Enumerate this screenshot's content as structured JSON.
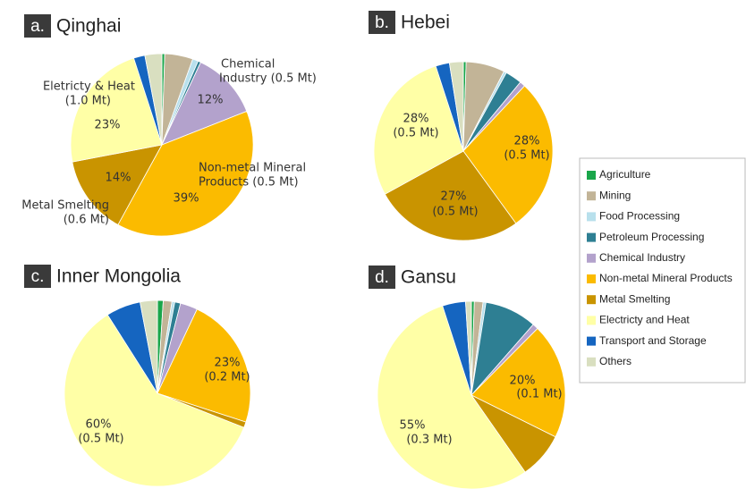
{
  "legend": {
    "categories": [
      "Agriculture",
      "Mining",
      "Food Processing",
      "Petroleum Processing",
      "Chemical Industry",
      "Non-metal Mineral Products",
      "Metal Smelting",
      "Electricty and Heat",
      "Transport and Storage",
      "Others"
    ],
    "colors": [
      "#1aa64a",
      "#c2b497",
      "#b8e0ec",
      "#2e7f93",
      "#b3a2cc",
      "#fbbb00",
      "#c99400",
      "#ffffa6",
      "#1565c0",
      "#d9dfc0"
    ]
  },
  "chart_data": [
    {
      "type": "pie",
      "panel": "a.",
      "title": "Qinghai",
      "values": [
        0.5,
        5,
        1,
        0.5,
        12,
        39,
        14,
        23,
        2,
        3
      ],
      "value_labels": [
        null,
        null,
        null,
        null,
        "12%",
        "39%",
        "14%",
        "23%",
        null,
        null
      ],
      "notes": [
        null,
        null,
        null,
        null,
        [
          "Chemical",
          "Industry (0.5 Mt)"
        ],
        [
          "Non-metal Mineral",
          "Products (0.5 Mt)"
        ],
        [
          "Metal Smelting",
          "(0.6 Mt)"
        ],
        [
          "Eletricty & Heat",
          "(1.0 Mt)"
        ],
        null,
        null
      ]
    },
    {
      "type": "pie",
      "panel": "b.",
      "title": "Hebei",
      "values": [
        0.5,
        7,
        0.5,
        3,
        1,
        28,
        27,
        28,
        2.5,
        2.5
      ],
      "value_labels": [
        null,
        null,
        null,
        null,
        null,
        "28%",
        "27%",
        "28%",
        null,
        null
      ],
      "notes": [
        null,
        null,
        null,
        null,
        null,
        [
          "(0.5 Mt)"
        ],
        [
          "(0.5 Mt)"
        ],
        [
          "(0.5 Mt)"
        ],
        null,
        null
      ]
    },
    {
      "type": "pie",
      "panel": "c.",
      "title": "Inner Mongolia",
      "values": [
        1,
        1.5,
        0.5,
        1,
        3,
        23,
        1,
        60,
        6,
        3
      ],
      "value_labels": [
        null,
        null,
        null,
        null,
        null,
        "23%",
        null,
        "60%",
        null,
        null
      ],
      "notes": [
        null,
        null,
        null,
        null,
        null,
        [
          "(0.2 Mt)"
        ],
        null,
        [
          "(0.5 Mt)"
        ],
        null,
        null
      ]
    },
    {
      "type": "pie",
      "panel": "d.",
      "title": "Gansu",
      "values": [
        0.5,
        1.5,
        0.5,
        9,
        1,
        20,
        8,
        55,
        4,
        1
      ],
      "value_labels": [
        null,
        null,
        null,
        null,
        null,
        "20%",
        null,
        "55%",
        null,
        null
      ],
      "notes": [
        null,
        null,
        null,
        null,
        null,
        [
          "(0.1 Mt)"
        ],
        null,
        [
          "(0.3 Mt)"
        ],
        null,
        null
      ]
    }
  ]
}
